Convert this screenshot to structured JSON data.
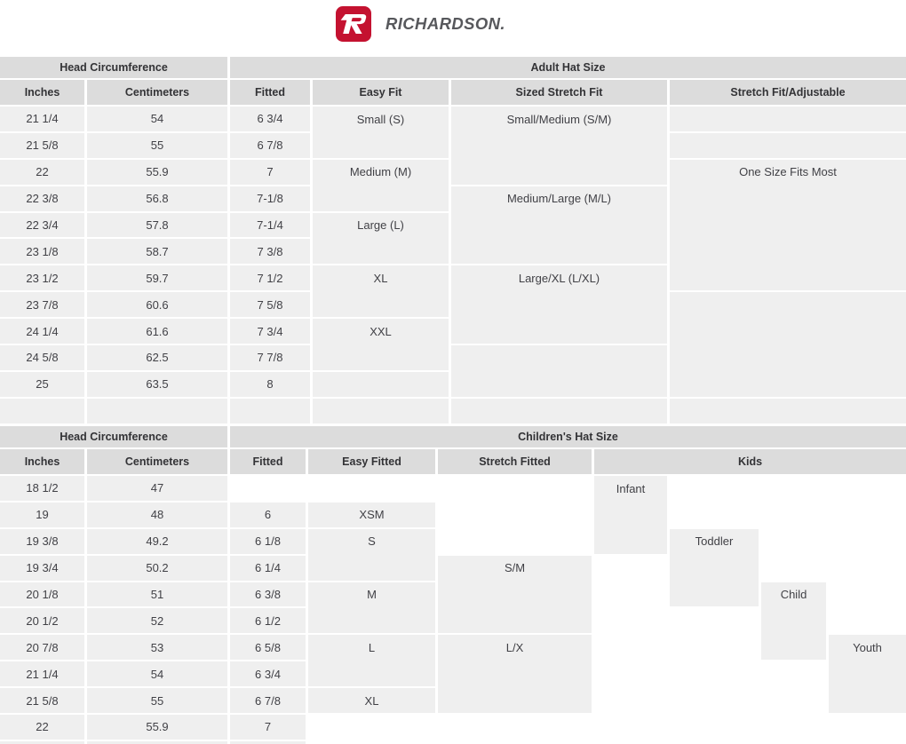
{
  "logo": {
    "brand": "RICHARDSON.",
    "mark": "R",
    "box_color": "#c41230",
    "text_color": "#57585c"
  },
  "colors": {
    "header_bg": "#dcdcdc",
    "cell_bg": "#efefef",
    "text": "#414146",
    "gap": "#ffffff"
  },
  "adult_table": {
    "group_headers": [
      {
        "label": "Head Circumference",
        "colspan": 2
      },
      {
        "label": "Adult Hat Size",
        "colspan": 4
      }
    ],
    "column_headers": [
      {
        "label": "Inches",
        "colspan": 1
      },
      {
        "label": "Centimeters",
        "colspan": 1
      },
      {
        "label": "Fitted",
        "colspan": 1
      },
      {
        "label": "Easy Fit",
        "colspan": 1
      },
      {
        "label": "Sized Stretch Fit",
        "colspan": 1
      },
      {
        "label": "Stretch Fit/Adjustable",
        "colspan": 1
      }
    ],
    "cells": [
      {
        "c": 1,
        "r": 1,
        "t": "21 1/4"
      },
      {
        "c": 1,
        "r": 2,
        "t": "21 5/8"
      },
      {
        "c": 1,
        "r": 3,
        "t": "22"
      },
      {
        "c": 1,
        "r": 4,
        "t": "22 3/8"
      },
      {
        "c": 1,
        "r": 5,
        "t": "22 3/4"
      },
      {
        "c": 1,
        "r": 6,
        "t": "23 1/8"
      },
      {
        "c": 1,
        "r": 7,
        "t": "23 1/2"
      },
      {
        "c": 1,
        "r": 8,
        "t": "23 7/8"
      },
      {
        "c": 1,
        "r": 9,
        "t": "24 1/4"
      },
      {
        "c": 1,
        "r": 10,
        "t": "24 5/8"
      },
      {
        "c": 1,
        "r": 11,
        "t": "25"
      },
      {
        "c": 1,
        "r": 12,
        "t": ""
      },
      {
        "c": 2,
        "r": 1,
        "t": "54"
      },
      {
        "c": 2,
        "r": 2,
        "t": "55"
      },
      {
        "c": 2,
        "r": 3,
        "t": "55.9"
      },
      {
        "c": 2,
        "r": 4,
        "t": "56.8"
      },
      {
        "c": 2,
        "r": 5,
        "t": "57.8"
      },
      {
        "c": 2,
        "r": 6,
        "t": "58.7"
      },
      {
        "c": 2,
        "r": 7,
        "t": "59.7"
      },
      {
        "c": 2,
        "r": 8,
        "t": "60.6"
      },
      {
        "c": 2,
        "r": 9,
        "t": "61.6"
      },
      {
        "c": 2,
        "r": 10,
        "t": "62.5"
      },
      {
        "c": 2,
        "r": 11,
        "t": "63.5"
      },
      {
        "c": 2,
        "r": 12,
        "t": ""
      },
      {
        "c": 3,
        "r": 1,
        "t": "6 3/4"
      },
      {
        "c": 3,
        "r": 2,
        "t": "6 7/8"
      },
      {
        "c": 3,
        "r": 3,
        "t": "7"
      },
      {
        "c": 3,
        "r": 4,
        "t": "7-1/8"
      },
      {
        "c": 3,
        "r": 5,
        "t": "7-1/4"
      },
      {
        "c": 3,
        "r": 6,
        "t": "7 3/8"
      },
      {
        "c": 3,
        "r": 7,
        "t": "7 1/2"
      },
      {
        "c": 3,
        "r": 8,
        "t": "7 5/8"
      },
      {
        "c": 3,
        "r": 9,
        "t": "7 3/4"
      },
      {
        "c": 3,
        "r": 10,
        "t": "7 7/8"
      },
      {
        "c": 3,
        "r": 11,
        "t": "8"
      },
      {
        "c": 3,
        "r": 12,
        "t": ""
      },
      {
        "c": 4,
        "r": 1,
        "rs": 2,
        "t": "Small (S)"
      },
      {
        "c": 4,
        "r": 3,
        "rs": 2,
        "t": "Medium (M)"
      },
      {
        "c": 4,
        "r": 5,
        "rs": 2,
        "t": "Large (L)"
      },
      {
        "c": 4,
        "r": 7,
        "rs": 2,
        "t": "XL"
      },
      {
        "c": 4,
        "r": 9,
        "rs": 2,
        "t": "XXL"
      },
      {
        "c": 4,
        "r": 11,
        "t": ""
      },
      {
        "c": 4,
        "r": 12,
        "t": ""
      },
      {
        "c": 5,
        "r": 1,
        "rs": 3,
        "t": "Small/Medium (S/M)"
      },
      {
        "c": 5,
        "r": 4,
        "rs": 3,
        "t": "Medium/Large (M/L)"
      },
      {
        "c": 5,
        "r": 7,
        "rs": 3,
        "t": "Large/XL (L/XL)"
      },
      {
        "c": 5,
        "r": 10,
        "rs": 2,
        "t": ""
      },
      {
        "c": 5,
        "r": 12,
        "t": ""
      },
      {
        "c": 6,
        "r": 1,
        "t": ""
      },
      {
        "c": 6,
        "r": 2,
        "t": ""
      },
      {
        "c": 6,
        "r": 3,
        "rs": 5,
        "t": "One Size Fits Most"
      },
      {
        "c": 6,
        "r": 8,
        "rs": 4,
        "t": ""
      },
      {
        "c": 6,
        "r": 12,
        "t": ""
      }
    ]
  },
  "children_table": {
    "group_headers": [
      {
        "label": "Head Circumference",
        "colspan": 2
      },
      {
        "label": "Children's Hat Size",
        "colspan": 7
      }
    ],
    "column_headers": [
      {
        "label": "Inches",
        "colspan": 1
      },
      {
        "label": "Centimeters",
        "colspan": 1
      },
      {
        "label": "Fitted",
        "colspan": 1
      },
      {
        "label": "Easy Fitted",
        "colspan": 1
      },
      {
        "label": "Stretch Fitted",
        "colspan": 1
      },
      {
        "label": "Kids",
        "colspan": 4
      }
    ],
    "cells": [
      {
        "c": 1,
        "r": 1,
        "t": "18 1/2"
      },
      {
        "c": 1,
        "r": 2,
        "t": "19"
      },
      {
        "c": 1,
        "r": 3,
        "t": "19 3/8"
      },
      {
        "c": 1,
        "r": 4,
        "t": "19 3/4"
      },
      {
        "c": 1,
        "r": 5,
        "t": "20 1/8"
      },
      {
        "c": 1,
        "r": 6,
        "t": "20 1/2"
      },
      {
        "c": 1,
        "r": 7,
        "t": "20 7/8"
      },
      {
        "c": 1,
        "r": 8,
        "t": "21 1/4"
      },
      {
        "c": 1,
        "r": 9,
        "t": "21 5/8"
      },
      {
        "c": 1,
        "r": 10,
        "t": "22"
      },
      {
        "c": 2,
        "r": 1,
        "t": "47"
      },
      {
        "c": 2,
        "r": 2,
        "t": "48"
      },
      {
        "c": 2,
        "r": 3,
        "t": "49.2"
      },
      {
        "c": 2,
        "r": 4,
        "t": "50.2"
      },
      {
        "c": 2,
        "r": 5,
        "t": "51"
      },
      {
        "c": 2,
        "r": 6,
        "t": "52"
      },
      {
        "c": 2,
        "r": 7,
        "t": "53"
      },
      {
        "c": 2,
        "r": 8,
        "t": "54"
      },
      {
        "c": 2,
        "r": 9,
        "t": "55"
      },
      {
        "c": 2,
        "r": 10,
        "t": "55.9"
      },
      {
        "c": 3,
        "r": 2,
        "t": "6"
      },
      {
        "c": 3,
        "r": 3,
        "t": "6 1/8"
      },
      {
        "c": 3,
        "r": 4,
        "t": "6 1/4"
      },
      {
        "c": 3,
        "r": 5,
        "t": "6 3/8"
      },
      {
        "c": 3,
        "r": 6,
        "t": "6 1/2"
      },
      {
        "c": 3,
        "r": 7,
        "t": "6 5/8"
      },
      {
        "c": 3,
        "r": 8,
        "t": "6 3/4"
      },
      {
        "c": 3,
        "r": 9,
        "t": "6 7/8"
      },
      {
        "c": 3,
        "r": 10,
        "t": "7"
      },
      {
        "c": 4,
        "r": 2,
        "t": "XSM"
      },
      {
        "c": 4,
        "r": 3,
        "rs": 2,
        "t": "S"
      },
      {
        "c": 4,
        "r": 5,
        "rs": 2,
        "t": "M"
      },
      {
        "c": 4,
        "r": 7,
        "rs": 2,
        "t": "L"
      },
      {
        "c": 4,
        "r": 9,
        "t": "XL"
      },
      {
        "c": 5,
        "r": 4,
        "rs": 3,
        "t": "S/M"
      },
      {
        "c": 5,
        "r": 7,
        "rs": 3,
        "t": "L/X"
      },
      {
        "c": 6,
        "r": 1,
        "rs": 3,
        "t": "Infant"
      },
      {
        "c": 7,
        "r": 3,
        "rs": 3,
        "t": "Toddler"
      },
      {
        "c": 8,
        "r": 5,
        "rs": 3,
        "t": "Child"
      },
      {
        "c": 9,
        "r": 7,
        "rs": 3,
        "t": "Youth"
      },
      {
        "c": 1,
        "r": 11,
        "t": ""
      },
      {
        "c": 2,
        "r": 11,
        "t": ""
      },
      {
        "c": 3,
        "r": 11,
        "t": ""
      }
    ]
  }
}
